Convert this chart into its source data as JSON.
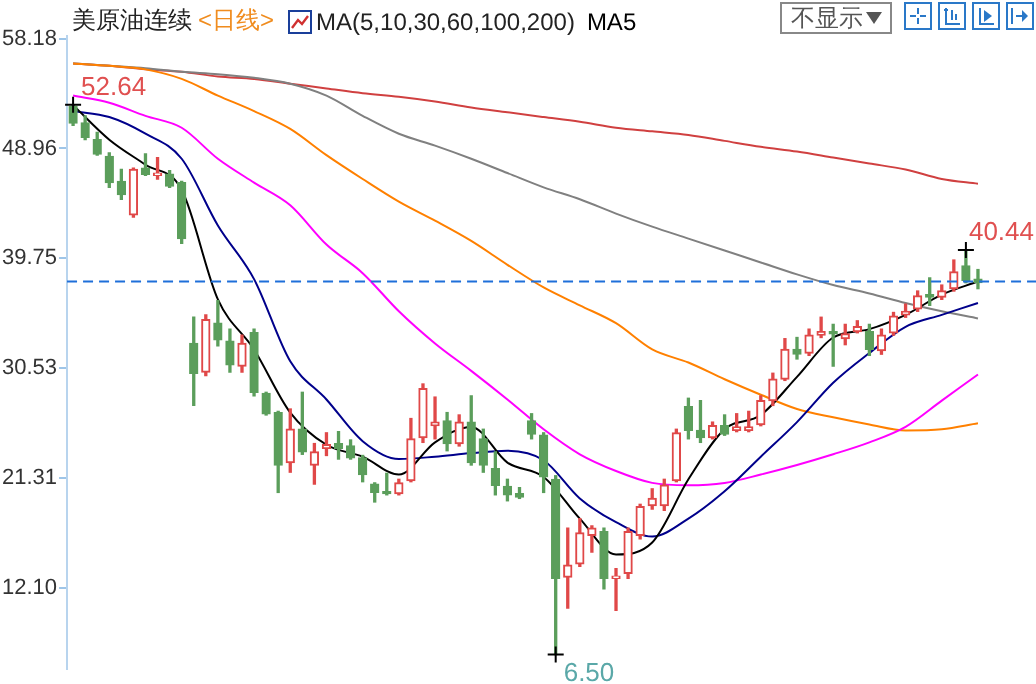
{
  "chart_data": {
    "type": "candlestick",
    "title": "美原油连续",
    "subtitle": "<日线>",
    "categories": [
      null,
      null,
      null,
      null,
      null,
      null,
      null,
      null,
      null,
      null,
      null,
      null,
      null,
      null,
      null,
      null,
      null,
      null,
      null,
      null,
      null,
      null,
      null,
      null,
      null,
      null,
      null,
      null,
      null,
      null,
      null,
      null,
      null,
      null,
      null,
      null,
      null,
      null,
      null,
      null,
      null,
      null,
      null,
      null,
      null,
      null,
      null,
      null,
      null,
      null,
      null,
      null,
      null,
      null,
      null,
      null,
      null,
      null,
      null,
      null,
      null,
      null,
      null,
      null,
      null,
      null,
      null,
      null,
      null,
      null,
      null,
      null,
      null,
      null,
      null,
      null
    ],
    "ohlc": [
      [
        52.5,
        52.64,
        50.9,
        51.1
      ],
      [
        51.1,
        51.7,
        49.7,
        49.9
      ],
      [
        49.7,
        50.3,
        48.4,
        48.5
      ],
      [
        48.3,
        48.6,
        45.7,
        46.1
      ],
      [
        46.2,
        47.2,
        44.7,
        45.1
      ],
      [
        43.4,
        47.3,
        43.2,
        47.2
      ],
      [
        47.3,
        48.5,
        46.7,
        46.8
      ],
      [
        46.7,
        48.2,
        46.4,
        46.9
      ],
      [
        46.8,
        47.1,
        45.7,
        45.8
      ],
      [
        46.1,
        46.2,
        41.0,
        41.4
      ],
      [
        32.6,
        34.8,
        27.4,
        30.1
      ],
      [
        30.2,
        35.0,
        29.9,
        34.6
      ],
      [
        34.3,
        36.2,
        32.4,
        32.9
      ],
      [
        32.8,
        33.8,
        30.2,
        30.8
      ],
      [
        30.7,
        33.3,
        30.2,
        32.6
      ],
      [
        33.5,
        33.8,
        28.2,
        28.5
      ],
      [
        28.4,
        28.5,
        26.6,
        26.7
      ],
      [
        26.8,
        26.9,
        20.1,
        22.4
      ],
      [
        22.6,
        27.1,
        21.8,
        25.4
      ],
      [
        25.4,
        28.5,
        23.3,
        23.5
      ],
      [
        22.4,
        24.2,
        20.8,
        23.5
      ],
      [
        23.8,
        25.1,
        23.2,
        24.1
      ],
      [
        24.2,
        25.2,
        22.9,
        23.8
      ],
      [
        24.0,
        24.5,
        22.9,
        23.0
      ],
      [
        23.0,
        23.2,
        21.0,
        21.6
      ],
      [
        20.8,
        20.9,
        19.3,
        20.1
      ],
      [
        20.1,
        21.7,
        19.9,
        20.0
      ],
      [
        20.0,
        21.2,
        19.9,
        20.9
      ],
      [
        21.1,
        26.3,
        21.0,
        24.6
      ],
      [
        24.7,
        29.2,
        24.3,
        28.8
      ],
      [
        25.7,
        28.1,
        24.6,
        26.0
      ],
      [
        26.1,
        26.8,
        23.6,
        24.2
      ],
      [
        24.2,
        26.6,
        24.0,
        26.0
      ],
      [
        26.0,
        28.2,
        22.4,
        22.6
      ],
      [
        24.6,
        25.4,
        21.8,
        22.4
      ],
      [
        22.1,
        23.5,
        19.9,
        20.7
      ],
      [
        20.6,
        21.2,
        19.4,
        19.9
      ],
      [
        20.0,
        20.5,
        19.6,
        19.7
      ],
      [
        26.1,
        26.7,
        24.6,
        25.0
      ],
      [
        24.9,
        25.1,
        20.1,
        21.4
      ],
      [
        21.2,
        21.5,
        6.5,
        12.9
      ],
      [
        13.0,
        17.1,
        10.4,
        14.0
      ],
      [
        14.1,
        17.9,
        13.9,
        16.7
      ],
      [
        16.5,
        17.3,
        15.1,
        17.1
      ],
      [
        16.8,
        17.1,
        12.0,
        12.9
      ],
      [
        12.9,
        13.7,
        10.2,
        13.0
      ],
      [
        13.3,
        17.1,
        12.9,
        16.8
      ],
      [
        16.5,
        19.1,
        16.2,
        18.9
      ],
      [
        19.0,
        20.4,
        18.7,
        19.6
      ],
      [
        19.0,
        21.2,
        18.6,
        20.7
      ],
      [
        21.1,
        25.4,
        21.0,
        25.1
      ],
      [
        27.3,
        28.0,
        24.6,
        25.3
      ],
      [
        25.3,
        27.8,
        24.3,
        24.7
      ],
      [
        24.7,
        26.0,
        24.6,
        25.7
      ],
      [
        25.7,
        26.6,
        24.9,
        25.0
      ],
      [
        25.3,
        26.7,
        25.2,
        25.6
      ],
      [
        25.3,
        26.9,
        25.2,
        25.6
      ],
      [
        25.8,
        28.2,
        25.7,
        27.8
      ],
      [
        27.8,
        30.1,
        27.4,
        29.6
      ],
      [
        29.6,
        33.0,
        29.5,
        32.1
      ],
      [
        32.1,
        33.1,
        31.3,
        31.7
      ],
      [
        31.8,
        33.8,
        31.6,
        33.3
      ],
      [
        33.3,
        34.8,
        33.1,
        33.6
      ],
      [
        33.6,
        34.2,
        30.7,
        33.4
      ],
      [
        33.0,
        34.2,
        32.5,
        33.4
      ],
      [
        33.6,
        34.5,
        33.5,
        34.0
      ],
      [
        33.6,
        34.2,
        31.6,
        32.1
      ],
      [
        32.0,
        33.8,
        31.7,
        33.3
      ],
      [
        33.5,
        35.2,
        33.3,
        34.9
      ],
      [
        35.0,
        35.9,
        34.8,
        35.3
      ],
      [
        35.5,
        37.0,
        35.3,
        36.6
      ],
      [
        36.7,
        38.1,
        35.8,
        36.5
      ],
      [
        36.5,
        37.5,
        36.3,
        37.0
      ],
      [
        37.2,
        39.6,
        37.0,
        38.6
      ],
      [
        39.1,
        40.44,
        37.7,
        37.9
      ],
      [
        38.0,
        38.8,
        37.2,
        37.7
      ]
    ],
    "series": [
      {
        "type": "line",
        "name": "MA5",
        "color": "#000000",
        "values": [
          52.6,
          null,
          null,
          49.7,
          null,
          null,
          47.6,
          null,
          null,
          45.5,
          null,
          null,
          36.3,
          null,
          null,
          32.1,
          null,
          null,
          26.8,
          null,
          null,
          24.1,
          null,
          null,
          23.1,
          null,
          null,
          21.6,
          null,
          null,
          24.3,
          null,
          null,
          25.6,
          null,
          null,
          22.6,
          null,
          null,
          21.4,
          null,
          null,
          17.9,
          null,
          null,
          14.9,
          null,
          null,
          15.9,
          null,
          null,
          21.2,
          null,
          null,
          25.4,
          null,
          null,
          26.6,
          null,
          null,
          29.8,
          null,
          null,
          33.1,
          null,
          null,
          33.8,
          null,
          null,
          35.0,
          null,
          null,
          36.7,
          null,
          null,
          37.8
        ]
      },
      {
        "type": "line",
        "color": "#00008b",
        "values": [
          52.1,
          null,
          null,
          51.6,
          null,
          null,
          50.2,
          null,
          null,
          48.1,
          null,
          null,
          42.5,
          null,
          null,
          38.0,
          null,
          null,
          31.1,
          null,
          null,
          27.9,
          null,
          null,
          24.4,
          null,
          null,
          22.9,
          null,
          null,
          23.1,
          null,
          null,
          23.4,
          null,
          null,
          23.6,
          null,
          null,
          22.8,
          null,
          null,
          19.6,
          null,
          null,
          17.6,
          null,
          null,
          16.4,
          null,
          null,
          17.9,
          null,
          null,
          20.2,
          null,
          null,
          23.1,
          null,
          null,
          26.0,
          null,
          null,
          29.3,
          null,
          null,
          31.8,
          null,
          null,
          34.0,
          null,
          null,
          35.0,
          null,
          null,
          36.0
        ]
      },
      {
        "type": "line",
        "color": "#ff00ff",
        "values": [
          53.4,
          null,
          null,
          52.8,
          null,
          null,
          51.7,
          null,
          null,
          50.7,
          null,
          null,
          48.1,
          null,
          null,
          46.1,
          null,
          null,
          44.2,
          null,
          null,
          40.9,
          null,
          null,
          38.5,
          null,
          null,
          35.3,
          null,
          null,
          32.6,
          null,
          null,
          30.3,
          null,
          null,
          27.9,
          null,
          null,
          25.4,
          null,
          null,
          23.3,
          null,
          null,
          21.9,
          null,
          null,
          20.9,
          null,
          null,
          20.7,
          null,
          null,
          20.9,
          null,
          null,
          21.6,
          null,
          null,
          22.4,
          null,
          null,
          23.3,
          null,
          null,
          24.3,
          null,
          null,
          25.6,
          null,
          null,
          27.8,
          null,
          null,
          30.0
        ]
      },
      {
        "type": "line",
        "color": "#ff8000",
        "values": [
          56.1,
          null,
          null,
          55.9,
          null,
          null,
          55.6,
          null,
          null,
          54.8,
          null,
          null,
          53.4,
          null,
          null,
          52.1,
          null,
          null,
          50.6,
          null,
          null,
          48.4,
          null,
          null,
          46.4,
          null,
          null,
          44.5,
          null,
          null,
          42.9,
          null,
          null,
          41.2,
          null,
          null,
          39.2,
          null,
          null,
          37.3,
          null,
          null,
          35.8,
          null,
          null,
          34.3,
          null,
          null,
          32.1,
          null,
          null,
          31.0,
          null,
          null,
          29.6,
          null,
          null,
          28.3,
          null,
          null,
          27.1,
          null,
          null,
          26.4,
          null,
          null,
          25.8,
          null,
          null,
          25.3,
          null,
          null,
          25.4,
          null,
          null,
          25.9
        ]
      },
      {
        "type": "line",
        "color": "#808080",
        "values": [
          56.1,
          null,
          null,
          55.9,
          null,
          null,
          55.7,
          null,
          null,
          55.4,
          null,
          null,
          55.2,
          null,
          null,
          54.9,
          null,
          null,
          54.4,
          null,
          null,
          53.4,
          null,
          null,
          51.7,
          null,
          null,
          50.2,
          null,
          null,
          49.2,
          null,
          null,
          48.1,
          null,
          null,
          46.9,
          null,
          null,
          45.7,
          null,
          null,
          44.7,
          null,
          null,
          43.5,
          null,
          null,
          42.4,
          null,
          null,
          41.4,
          null,
          null,
          40.4,
          null,
          null,
          39.4,
          null,
          null,
          38.4,
          null,
          null,
          37.5,
          null,
          null,
          36.8,
          null,
          null,
          36.0,
          null,
          null,
          35.3,
          null,
          null,
          34.7
        ]
      },
      {
        "type": "line",
        "color": "#d04040",
        "values": [
          56.1,
          null,
          null,
          55.9,
          null,
          null,
          55.6,
          null,
          null,
          55.4,
          null,
          null,
          55.0,
          null,
          null,
          54.8,
          null,
          null,
          54.4,
          null,
          null,
          54.0,
          null,
          null,
          53.6,
          null,
          null,
          53.3,
          null,
          null,
          52.9,
          null,
          null,
          52.4,
          null,
          null,
          52.0,
          null,
          null,
          51.6,
          null,
          null,
          51.2,
          null,
          null,
          50.7,
          null,
          null,
          50.4,
          null,
          null,
          50.1,
          null,
          null,
          49.6,
          null,
          null,
          49.1,
          null,
          null,
          48.7,
          null,
          null,
          48.2,
          null,
          null,
          47.7,
          null,
          null,
          47.2,
          null,
          null,
          46.4,
          null,
          null,
          46.0
        ]
      }
    ],
    "ylim": [
      5.3,
      58.4
    ],
    "yticks": [
      58.18,
      48.96,
      39.75,
      30.53,
      21.31,
      {
        "value": 12.1,
        "label": "12.10"
      }
    ],
    "tick_labels": "y",
    "ref_lines": [
      {
        "axis": "y",
        "value": 37.8,
        "color": "#1e6fd9",
        "line_style": "dashed"
      }
    ],
    "annotations": [
      "MA(5,10,30,60,100,200)",
      "不显示",
      "52.64",
      "40.44",
      "6.50"
    ]
  }
}
